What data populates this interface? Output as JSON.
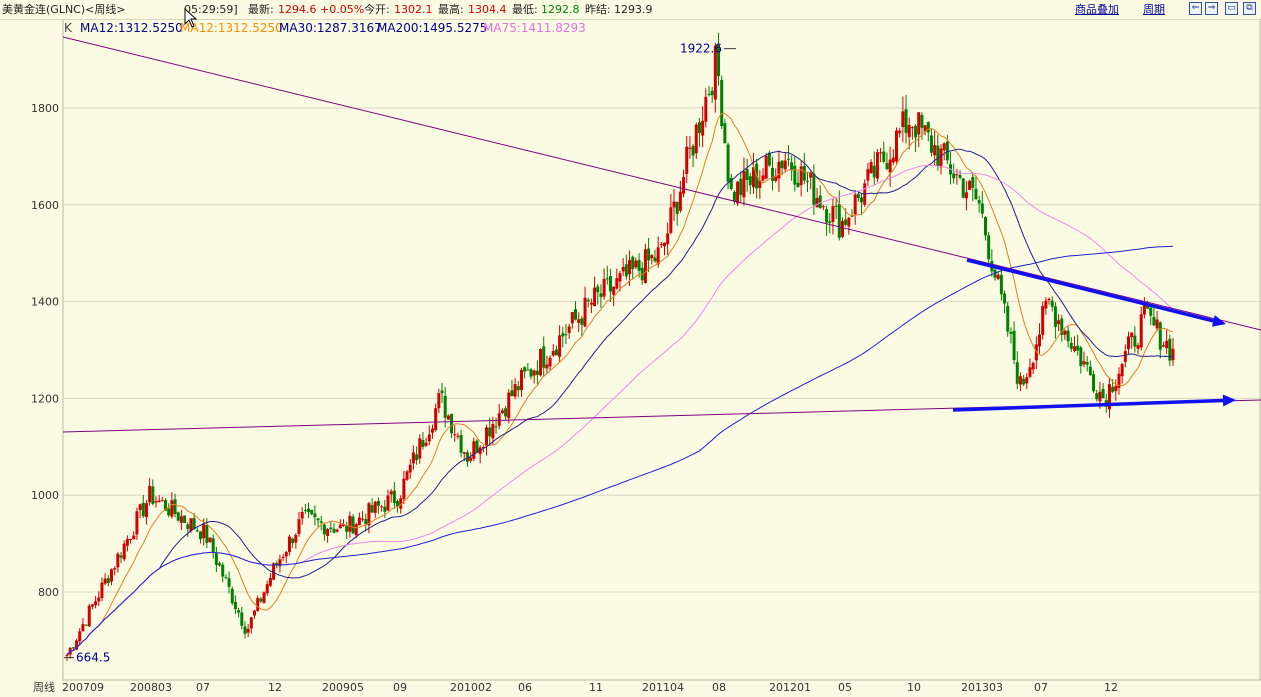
{
  "header": {
    "title": "美黄金连(GLNC)<周线>",
    "time": "05:29:59]",
    "latest_label": "最新:",
    "latest_value": "1294.6",
    "change": "+0.05%",
    "open_label": "今开:",
    "open_value": "1302.1",
    "high_label": "最高:",
    "high_value": "1304.4",
    "low_label": "最低:",
    "low_value": "1292.8",
    "prev_label": "昨结:",
    "prev_value": "1293.9",
    "overlay_link": "商品叠加",
    "period_link": "周期",
    "win_buttons": [
      "⇐",
      "⇒",
      "▭",
      "⧉"
    ]
  },
  "ma_legend": {
    "k_label": "K",
    "items": [
      {
        "text": "MA12:1312.5250",
        "color": "#00008b"
      },
      {
        "text": "MA12:1312.5250",
        "color": "#ff8c00"
      },
      {
        "text": "MA30:1287.3167",
        "color": "#00008b"
      },
      {
        "text": "MA200:1495.5275",
        "color": "#00008b"
      },
      {
        "text": "MA75:1411.8293",
        "color": "#e070e0"
      }
    ]
  },
  "colors": {
    "background": "#fbfbe4",
    "grid": "#d8d8c4",
    "up_candle": "#d40000",
    "down_candle": "#008000",
    "ma_orange": "#e08020",
    "ma_navy": "#20208a",
    "ma_blue": "#2020d0",
    "ma_pink": "#ee88ee",
    "trendline": "#800080",
    "arrow": "#1010f0"
  },
  "chart_data": {
    "type": "candlestick",
    "period_label": "周线",
    "x_tick_labels": [
      "200709",
      "200803",
      "07",
      "12",
      "200905",
      "09",
      "201002",
      "06",
      "11",
      "201104",
      "08",
      "201201",
      "05",
      "10",
      "201303",
      "07",
      "12"
    ],
    "y_ticks": [
      800,
      1000,
      1200,
      1400,
      1600,
      1800
    ],
    "ylim": [
      640,
      1960
    ],
    "annotations": [
      {
        "text": "1922.6",
        "x": "201108",
        "y": 1922.6
      },
      {
        "text": "664.5",
        "x": "200709",
        "y": 664.5
      }
    ],
    "price_anchors": [
      {
        "x": "200709",
        "close": 670
      },
      {
        "x": "200803",
        "close": 1000
      },
      {
        "x": "200807",
        "close": 920
      },
      {
        "x": "200810",
        "close": 720
      },
      {
        "x": "200812",
        "close": 850
      },
      {
        "x": "200902",
        "close": 950
      },
      {
        "x": "200905",
        "close": 930
      },
      {
        "x": "200909",
        "close": 1000
      },
      {
        "x": "200912",
        "close": 1200
      },
      {
        "x": "201002",
        "close": 1080
      },
      {
        "x": "201006",
        "close": 1240
      },
      {
        "x": "201011",
        "close": 1400
      },
      {
        "x": "201104",
        "close": 1500
      },
      {
        "x": "201108",
        "close": 1900
      },
      {
        "x": "201109",
        "close": 1620
      },
      {
        "x": "201201",
        "close": 1700
      },
      {
        "x": "201205",
        "close": 1560
      },
      {
        "x": "201210",
        "close": 1780
      },
      {
        "x": "201303",
        "close": 1600
      },
      {
        "x": "201306",
        "close": 1220
      },
      {
        "x": "201308",
        "close": 1400
      },
      {
        "x": "201312",
        "close": 1200
      },
      {
        "x": "201403",
        "close": 1370
      },
      {
        "x": "201405",
        "close": 1295
      }
    ],
    "series": [
      {
        "name": "MA12",
        "values_last": 1312.525
      },
      {
        "name": "MA12",
        "values_last": 1312.525
      },
      {
        "name": "MA30",
        "values_last": 1287.3167
      },
      {
        "name": "MA200",
        "values_last": 1495.5275
      },
      {
        "name": "MA75",
        "values_last": 1411.8293
      }
    ],
    "trendlines": [
      {
        "from": {
          "x": "200709",
          "y": 1940
        },
        "to": {
          "x": "201406",
          "y": 1330
        }
      },
      {
        "from": {
          "x": "200709",
          "y": 1130
        },
        "to": {
          "x": "201406",
          "y": 1195
        }
      }
    ],
    "arrows": [
      {
        "from": {
          "x": "201302",
          "y": 1490
        },
        "to": {
          "x": "201404",
          "y": 1365
        }
      },
      {
        "from": {
          "x": "201303",
          "y": 1175
        },
        "to": {
          "x": "201405",
          "y": 1195
        }
      }
    ],
    "grid": true
  }
}
